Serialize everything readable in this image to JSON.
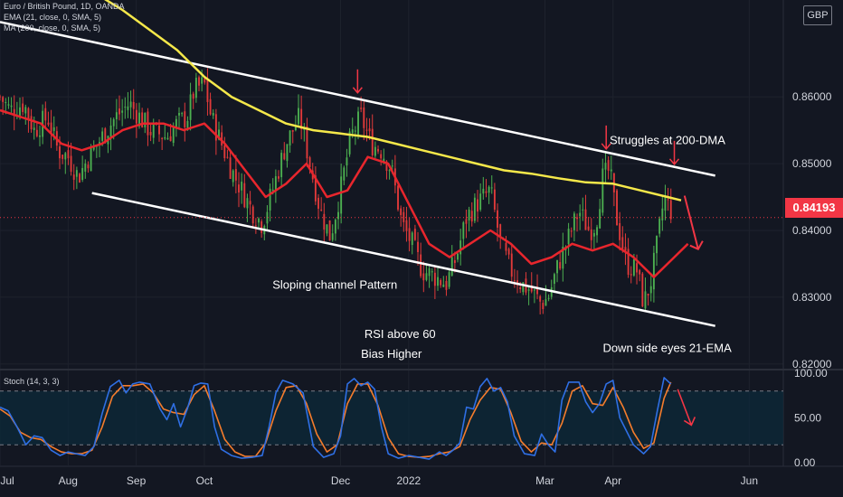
{
  "chart_data": {
    "type": "candlestick",
    "symbol_line": "Euro / British Pound, 1D, OANDA",
    "indicators": [
      "EMA (21, close, 0, SMA, 5)",
      "MA (200, close, 0, SMA, 5)"
    ],
    "currency": "GBP",
    "last_price": "0.84193",
    "y_ticks": [
      "0.86000",
      "0.85000",
      "0.84000",
      "0.83000",
      "0.82000"
    ],
    "y_tick_values": [
      0.86,
      0.85,
      0.84,
      0.83,
      0.82
    ],
    "ylim": [
      0.8193,
      0.8745
    ],
    "x_ticks": [
      "Jul",
      "Aug",
      "Sep",
      "Oct",
      "Dec",
      "2022",
      "Mar",
      "Apr",
      "Jun"
    ],
    "x_tick_positions": [
      0.0,
      1.0,
      2.0,
      3.0,
      5.0,
      6.0,
      8.0,
      9.0,
      11.0
    ],
    "xlim": [
      0.0,
      11.5
    ],
    "close_path": [
      [
        0.0,
        0.86
      ],
      [
        0.15,
        0.858
      ],
      [
        0.35,
        0.859
      ],
      [
        0.5,
        0.855
      ],
      [
        0.7,
        0.857
      ],
      [
        0.85,
        0.852
      ],
      [
        1.0,
        0.851
      ],
      [
        1.15,
        0.848
      ],
      [
        1.3,
        0.851
      ],
      [
        1.5,
        0.854
      ],
      [
        1.7,
        0.857
      ],
      [
        1.9,
        0.859
      ],
      [
        2.05,
        0.857
      ],
      [
        2.2,
        0.855
      ],
      [
        2.45,
        0.854
      ],
      [
        2.6,
        0.856
      ],
      [
        2.75,
        0.857
      ],
      [
        2.85,
        0.861
      ],
      [
        3.0,
        0.862
      ],
      [
        3.1,
        0.857
      ],
      [
        3.25,
        0.853
      ],
      [
        3.4,
        0.849
      ],
      [
        3.55,
        0.846
      ],
      [
        3.7,
        0.843
      ],
      [
        3.85,
        0.841
      ],
      [
        4.0,
        0.846
      ],
      [
        4.2,
        0.853
      ],
      [
        4.4,
        0.857
      ],
      [
        4.55,
        0.85
      ],
      [
        4.7,
        0.843
      ],
      [
        4.85,
        0.839
      ],
      [
        5.0,
        0.846
      ],
      [
        5.15,
        0.854
      ],
      [
        5.3,
        0.857
      ],
      [
        5.45,
        0.853
      ],
      [
        5.6,
        0.852
      ],
      [
        5.75,
        0.849
      ],
      [
        5.9,
        0.841
      ],
      [
        6.05,
        0.838
      ],
      [
        6.2,
        0.834
      ],
      [
        6.4,
        0.833
      ],
      [
        6.55,
        0.832
      ],
      [
        6.7,
        0.836
      ],
      [
        6.85,
        0.842
      ],
      [
        7.0,
        0.844
      ],
      [
        7.2,
        0.846
      ],
      [
        7.35,
        0.838
      ],
      [
        7.5,
        0.834
      ],
      [
        7.65,
        0.832
      ],
      [
        7.8,
        0.831
      ],
      [
        7.95,
        0.829
      ],
      [
        8.05,
        0.83
      ],
      [
        8.2,
        0.835
      ],
      [
        8.35,
        0.839
      ],
      [
        8.5,
        0.843
      ],
      [
        8.65,
        0.84
      ],
      [
        8.75,
        0.841
      ],
      [
        8.85,
        0.848
      ],
      [
        8.95,
        0.849
      ],
      [
        9.05,
        0.842
      ],
      [
        9.2,
        0.835
      ],
      [
        9.35,
        0.834
      ],
      [
        9.45,
        0.829
      ],
      [
        9.55,
        0.832
      ],
      [
        9.65,
        0.838
      ],
      [
        9.75,
        0.845
      ],
      [
        9.85,
        0.843
      ]
    ],
    "ema21": [
      [
        0.0,
        0.858
      ],
      [
        0.3,
        0.857
      ],
      [
        0.6,
        0.856
      ],
      [
        0.9,
        0.853
      ],
      [
        1.2,
        0.852
      ],
      [
        1.5,
        0.853
      ],
      [
        1.8,
        0.855
      ],
      [
        2.1,
        0.856
      ],
      [
        2.4,
        0.856
      ],
      [
        2.7,
        0.855
      ],
      [
        3.0,
        0.856
      ],
      [
        3.3,
        0.853
      ],
      [
        3.6,
        0.849
      ],
      [
        3.9,
        0.845
      ],
      [
        4.2,
        0.847
      ],
      [
        4.5,
        0.85
      ],
      [
        4.8,
        0.845
      ],
      [
        5.1,
        0.846
      ],
      [
        5.4,
        0.851
      ],
      [
        5.7,
        0.85
      ],
      [
        6.0,
        0.844
      ],
      [
        6.3,
        0.838
      ],
      [
        6.6,
        0.836
      ],
      [
        6.9,
        0.838
      ],
      [
        7.2,
        0.84
      ],
      [
        7.5,
        0.838
      ],
      [
        7.8,
        0.835
      ],
      [
        8.1,
        0.836
      ],
      [
        8.4,
        0.838
      ],
      [
        8.7,
        0.837
      ],
      [
        9.0,
        0.838
      ],
      [
        9.3,
        0.836
      ],
      [
        9.6,
        0.833
      ],
      [
        9.9,
        0.836
      ],
      [
        10.1,
        0.838
      ]
    ],
    "ma200": [
      [
        1.4,
        0.8755
      ],
      [
        1.8,
        0.873
      ],
      [
        2.2,
        0.87
      ],
      [
        2.6,
        0.867
      ],
      [
        3.0,
        0.863
      ],
      [
        3.4,
        0.86
      ],
      [
        3.8,
        0.858
      ],
      [
        4.2,
        0.856
      ],
      [
        4.6,
        0.855
      ],
      [
        5.0,
        0.8545
      ],
      [
        5.4,
        0.854
      ],
      [
        5.8,
        0.853
      ],
      [
        6.2,
        0.852
      ],
      [
        6.6,
        0.851
      ],
      [
        7.0,
        0.85
      ],
      [
        7.4,
        0.849
      ],
      [
        7.8,
        0.8485
      ],
      [
        8.2,
        0.8478
      ],
      [
        8.6,
        0.8472
      ],
      [
        9.0,
        0.847
      ],
      [
        9.4,
        0.846
      ],
      [
        9.8,
        0.845
      ],
      [
        10.0,
        0.8445
      ]
    ],
    "channel_upper": [
      [
        0.0,
        0.8712
      ],
      [
        10.5,
        0.8482
      ]
    ],
    "channel_lower": [
      [
        1.35,
        0.8456
      ],
      [
        10.5,
        0.8257
      ]
    ],
    "annotations": [
      {
        "text": "Struggles at 200-DMA",
        "x": 8.95,
        "y": 0.8529
      },
      {
        "text": "Sloping channel Pattern",
        "x": 4.0,
        "y": 0.8313
      },
      {
        "text": "RSI above 60",
        "x": 5.35,
        "y": 0.8239
      },
      {
        "text": "Bias Higher",
        "x": 5.3,
        "y": 0.8209
      },
      {
        "text": "Down side eyes 21-EMA",
        "x": 8.85,
        "y": 0.8218
      }
    ],
    "down_arrows": [
      {
        "x": 5.25,
        "y": 0.8606
      },
      {
        "x": 8.9,
        "y": 0.8522
      },
      {
        "x": 9.9,
        "y": 0.8499
      }
    ],
    "forecast_arrow": [
      [
        10.05,
        0.8452
      ],
      [
        10.25,
        0.8372
      ]
    ],
    "stoch": {
      "label": "Stoch (14, 3, 3)",
      "y_ticks": [
        "100.00",
        "50.00",
        "0.00"
      ],
      "y_tick_values": [
        100,
        50,
        0
      ],
      "ylim": [
        -3,
        103
      ],
      "bands": [
        80,
        20
      ],
      "k": [
        [
          0.0,
          62
        ],
        [
          0.12,
          58
        ],
        [
          0.25,
          40
        ],
        [
          0.38,
          20
        ],
        [
          0.5,
          30
        ],
        [
          0.62,
          28
        ],
        [
          0.75,
          14
        ],
        [
          0.88,
          8
        ],
        [
          1.0,
          12
        ],
        [
          1.12,
          10
        ],
        [
          1.25,
          8
        ],
        [
          1.38,
          18
        ],
        [
          1.5,
          55
        ],
        [
          1.62,
          85
        ],
        [
          1.75,
          92
        ],
        [
          1.85,
          78
        ],
        [
          1.95,
          88
        ],
        [
          2.05,
          90
        ],
        [
          2.2,
          88
        ],
        [
          2.35,
          60
        ],
        [
          2.45,
          48
        ],
        [
          2.55,
          66
        ],
        [
          2.65,
          40
        ],
        [
          2.75,
          60
        ],
        [
          2.85,
          86
        ],
        [
          2.95,
          89
        ],
        [
          3.05,
          88
        ],
        [
          3.15,
          40
        ],
        [
          3.25,
          15
        ],
        [
          3.4,
          8
        ],
        [
          3.55,
          5
        ],
        [
          3.7,
          6
        ],
        [
          3.85,
          8
        ],
        [
          3.95,
          40
        ],
        [
          4.05,
          78
        ],
        [
          4.15,
          92
        ],
        [
          4.3,
          88
        ],
        [
          4.45,
          78
        ],
        [
          4.6,
          18
        ],
        [
          4.75,
          6
        ],
        [
          4.9,
          10
        ],
        [
          5.0,
          30
        ],
        [
          5.1,
          88
        ],
        [
          5.2,
          94
        ],
        [
          5.3,
          86
        ],
        [
          5.4,
          90
        ],
        [
          5.5,
          82
        ],
        [
          5.6,
          40
        ],
        [
          5.7,
          10
        ],
        [
          5.85,
          5
        ],
        [
          6.0,
          8
        ],
        [
          6.15,
          6
        ],
        [
          6.3,
          4
        ],
        [
          6.45,
          12
        ],
        [
          6.55,
          8
        ],
        [
          6.65,
          14
        ],
        [
          6.75,
          22
        ],
        [
          6.85,
          62
        ],
        [
          6.95,
          60
        ],
        [
          7.05,
          85
        ],
        [
          7.15,
          94
        ],
        [
          7.25,
          80
        ],
        [
          7.35,
          84
        ],
        [
          7.45,
          68
        ],
        [
          7.55,
          30
        ],
        [
          7.7,
          10
        ],
        [
          7.85,
          8
        ],
        [
          7.95,
          32
        ],
        [
          8.05,
          20
        ],
        [
          8.15,
          12
        ],
        [
          8.25,
          70
        ],
        [
          8.35,
          90
        ],
        [
          8.5,
          90
        ],
        [
          8.6,
          68
        ],
        [
          8.7,
          56
        ],
        [
          8.8,
          66
        ],
        [
          8.9,
          88
        ],
        [
          9.0,
          92
        ],
        [
          9.1,
          50
        ],
        [
          9.2,
          35
        ],
        [
          9.3,
          20
        ],
        [
          9.45,
          10
        ],
        [
          9.55,
          18
        ],
        [
          9.65,
          58
        ],
        [
          9.75,
          95
        ],
        [
          9.85,
          88
        ]
      ],
      "d": [
        [
          0.0,
          60
        ],
        [
          0.15,
          52
        ],
        [
          0.3,
          34
        ],
        [
          0.45,
          28
        ],
        [
          0.6,
          26
        ],
        [
          0.75,
          18
        ],
        [
          0.9,
          12
        ],
        [
          1.05,
          10
        ],
        [
          1.2,
          10
        ],
        [
          1.35,
          14
        ],
        [
          1.5,
          40
        ],
        [
          1.65,
          74
        ],
        [
          1.8,
          86
        ],
        [
          1.95,
          86
        ],
        [
          2.1,
          88
        ],
        [
          2.25,
          78
        ],
        [
          2.4,
          60
        ],
        [
          2.55,
          56
        ],
        [
          2.7,
          54
        ],
        [
          2.85,
          76
        ],
        [
          3.0,
          86
        ],
        [
          3.15,
          58
        ],
        [
          3.3,
          26
        ],
        [
          3.45,
          12
        ],
        [
          3.6,
          7
        ],
        [
          3.75,
          7
        ],
        [
          3.9,
          22
        ],
        [
          4.05,
          58
        ],
        [
          4.2,
          84
        ],
        [
          4.35,
          86
        ],
        [
          4.5,
          66
        ],
        [
          4.65,
          32
        ],
        [
          4.8,
          12
        ],
        [
          4.95,
          20
        ],
        [
          5.1,
          66
        ],
        [
          5.25,
          88
        ],
        [
          5.4,
          88
        ],
        [
          5.55,
          64
        ],
        [
          5.7,
          28
        ],
        [
          5.85,
          10
        ],
        [
          6.0,
          7
        ],
        [
          6.15,
          6
        ],
        [
          6.3,
          7
        ],
        [
          6.45,
          10
        ],
        [
          6.6,
          12
        ],
        [
          6.75,
          18
        ],
        [
          6.9,
          48
        ],
        [
          7.05,
          70
        ],
        [
          7.2,
          84
        ],
        [
          7.35,
          82
        ],
        [
          7.5,
          56
        ],
        [
          7.65,
          24
        ],
        [
          7.8,
          12
        ],
        [
          7.95,
          22
        ],
        [
          8.1,
          20
        ],
        [
          8.25,
          44
        ],
        [
          8.4,
          80
        ],
        [
          8.55,
          86
        ],
        [
          8.7,
          66
        ],
        [
          8.85,
          64
        ],
        [
          9.0,
          84
        ],
        [
          9.15,
          62
        ],
        [
          9.3,
          34
        ],
        [
          9.45,
          16
        ],
        [
          9.6,
          22
        ],
        [
          9.75,
          72
        ],
        [
          9.85,
          90
        ]
      ],
      "forecast_arrow": [
        [
          9.95,
          82
        ],
        [
          10.15,
          42
        ]
      ]
    }
  }
}
